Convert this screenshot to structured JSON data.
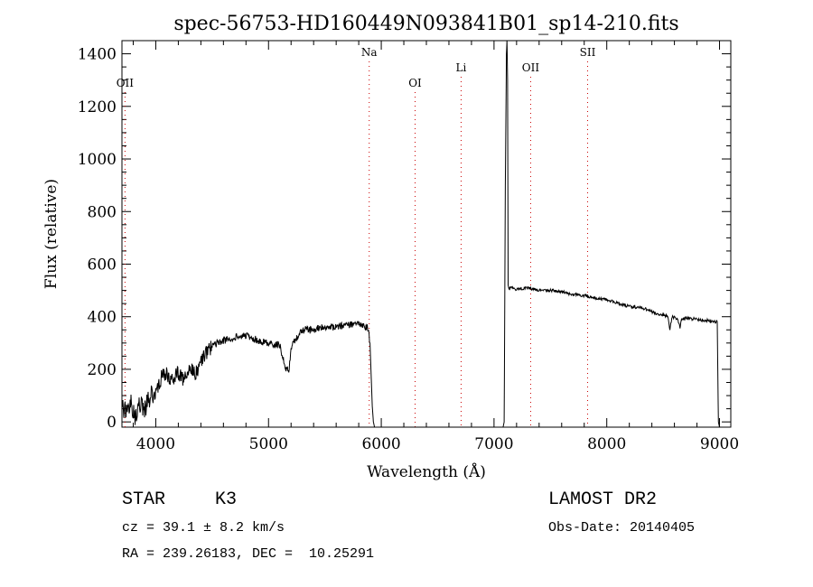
{
  "chart_data": {
    "type": "line",
    "title": "spec-56753-HD160449N093841B01_sp14-210.fits",
    "xlabel": "Wavelength (Å)",
    "ylabel": "Flux (relative)",
    "xlim": [
      3700,
      9100
    ],
    "ylim": [
      -20,
      1450
    ],
    "grid": false,
    "x_ticks": [
      4000,
      5000,
      6000,
      7000,
      8000,
      9000
    ],
    "y_ticks": [
      0,
      200,
      400,
      600,
      800,
      1000,
      1200,
      1400
    ],
    "series": [
      {
        "x": [
          3700,
          3740,
          3780,
          3820,
          3860,
          3900,
          3950,
          4000,
          4050,
          4100,
          4150,
          4200,
          4250,
          4300,
          4350,
          4400,
          4450,
          4500,
          4550,
          4600,
          4700,
          4800,
          4900,
          5000,
          5100,
          5150,
          5180,
          5200,
          5250,
          5300,
          5400,
          5500,
          5600,
          5700,
          5800,
          5850,
          5880,
          5900,
          5920,
          5930,
          5940,
          6000,
          6100,
          6500,
          7000,
          7080,
          7090,
          7100,
          7110,
          7115,
          7120,
          7125,
          7130,
          7140,
          7200,
          7300,
          7400,
          7500,
          7600,
          7700,
          7800,
          7900,
          8000,
          8100,
          8200,
          8300,
          8400,
          8450,
          8500,
          8540,
          8560,
          8580,
          8620,
          8650,
          8665,
          8700,
          8800,
          8900,
          8980,
          8990,
          9000
        ],
        "y": [
          60,
          30,
          80,
          20,
          70,
          50,
          100,
          110,
          170,
          180,
          150,
          190,
          160,
          200,
          180,
          230,
          260,
          290,
          300,
          310,
          320,
          330,
          310,
          300,
          290,
          210,
          190,
          280,
          320,
          350,
          350,
          360,
          360,
          370,
          370,
          360,
          360,
          300,
          60,
          0,
          -20,
          -20,
          -20,
          -20,
          -20,
          -20,
          0,
          900,
          1400,
          1450,
          1300,
          520,
          510,
          510,
          505,
          510,
          500,
          500,
          495,
          485,
          480,
          470,
          465,
          450,
          440,
          435,
          420,
          410,
          410,
          400,
          355,
          400,
          395,
          360,
          390,
          395,
          390,
          385,
          380,
          0,
          -20
        ]
      }
    ],
    "annotations": [
      {
        "label": "OII",
        "x": 3727
      },
      {
        "label": "Na",
        "x": 5893
      },
      {
        "label": "OI",
        "x": 6300
      },
      {
        "label": "Li",
        "x": 6708
      },
      {
        "label": "OII",
        "x": 7325
      },
      {
        "label": "SII",
        "x": 7830
      }
    ]
  },
  "info": {
    "class_label": "STAR",
    "subclass": "K3",
    "survey": "LAMOST DR2",
    "redshift": "cz = 39.1 ± 8.2 km/s",
    "obs_date": "Obs-Date: 20140405",
    "coords": "RA = 239.26183, DEC =  10.25291"
  },
  "colors": {
    "spectrum": "#000000",
    "line_markers": "#cc0000",
    "axes": "#000000"
  }
}
